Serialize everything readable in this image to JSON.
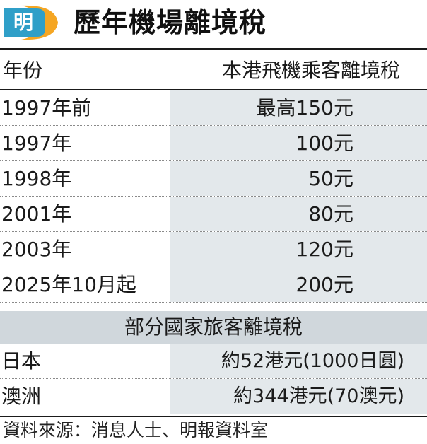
{
  "header": {
    "logo_char": "明",
    "title": "歷年機場離境稅"
  },
  "table1": {
    "col_year": "年份",
    "col_tax": "本港飛機乘客離境稅",
    "rows": [
      {
        "year": "1997年前",
        "tax": "最高150元"
      },
      {
        "year": "1997年",
        "tax": "100元"
      },
      {
        "year": "1998年",
        "tax": "50元"
      },
      {
        "year": "2001年",
        "tax": "80元"
      },
      {
        "year": "2003年",
        "tax": "120元"
      },
      {
        "year": "2025年10月起",
        "tax": "200元"
      }
    ]
  },
  "table2": {
    "heading": "部分國家旅客離境稅",
    "rows": [
      {
        "country": "日本",
        "tax": "約52港元(1000日圓)"
      },
      {
        "country": "澳洲",
        "tax": "約344港元(70澳元)"
      }
    ]
  },
  "source": "資料來源：消息人士、明報資料室",
  "colors": {
    "logo_bg": "#2f9fc8",
    "logo_swoosh": "#f5a623",
    "value_cell": "#e3e8eb",
    "section_bar": "#d0d7dc"
  }
}
